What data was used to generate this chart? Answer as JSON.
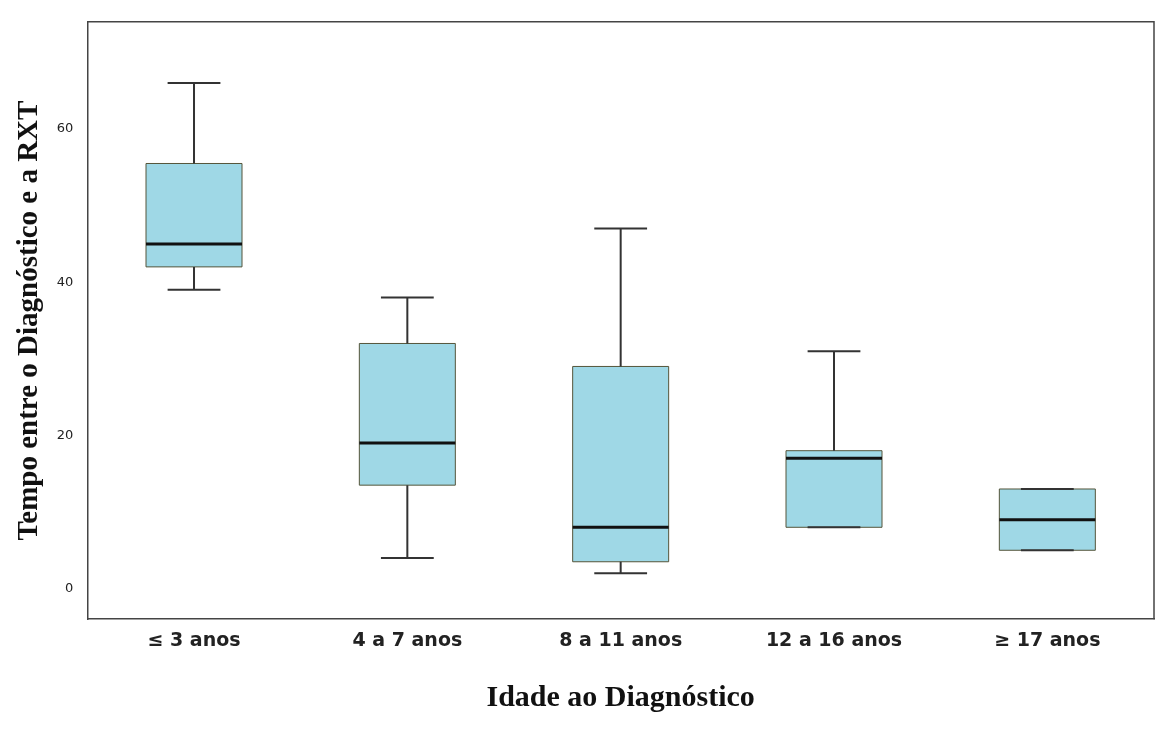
{
  "chart_data": {
    "type": "box",
    "xlabel": "Idade ao Diagnóstico",
    "ylabel": "Tempo entre o Diagnóstico e a RXT",
    "categories": [
      "≤ 3 anos",
      "4 a 7 anos",
      "8 a 11 anos",
      "12 a 16 anos",
      "≥ 17 anos"
    ],
    "color": "#9fd8e6",
    "boxes": [
      {
        "low": 39,
        "q1": 42,
        "median": 45,
        "q3": 55.5,
        "high": 66
      },
      {
        "low": 4,
        "q1": 13.5,
        "median": 19,
        "q3": 32,
        "high": 38
      },
      {
        "low": 2,
        "q1": 3.5,
        "median": 8,
        "q3": 29,
        "high": 47
      },
      {
        "low": 8,
        "q1": 8,
        "median": 17,
        "q3": 18,
        "high": 31
      },
      {
        "low": 5,
        "q1": 5,
        "median": 9,
        "q3": 13,
        "high": 13
      }
    ],
    "ylim": [
      -4,
      74
    ],
    "yticks": [
      0,
      20,
      40,
      60
    ]
  }
}
